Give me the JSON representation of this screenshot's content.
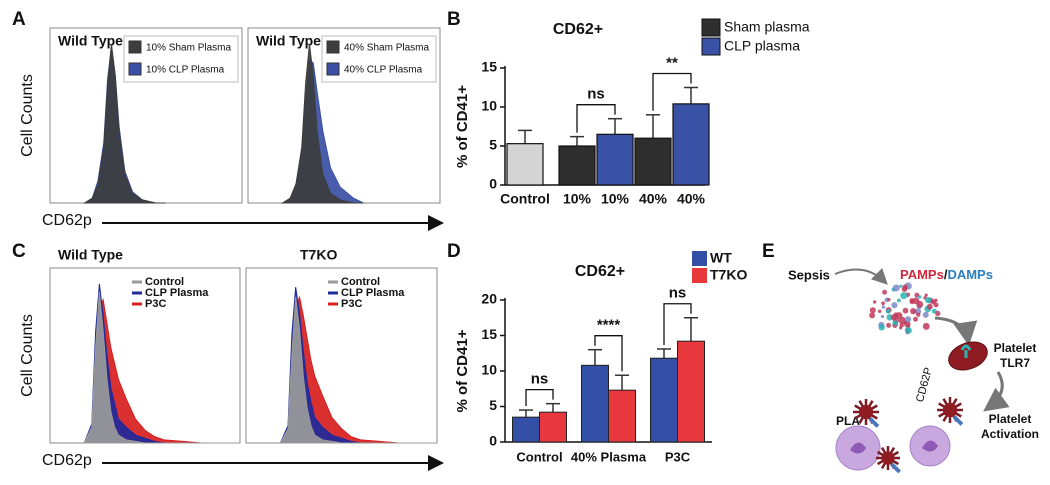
{
  "panel_labels": [
    "A",
    "B",
    "C",
    "D",
    "E"
  ],
  "chart_data": [
    {
      "type": "flow",
      "title": "Wild Type",
      "y_label": "Cell Counts",
      "x_label": "CD62p",
      "legend_marker": "square",
      "xlim": [
        0,
        100
      ],
      "ylim": [
        0,
        110
      ],
      "x": [
        18,
        22,
        25,
        28,
        30,
        32,
        34,
        36,
        39,
        43,
        48,
        55,
        60
      ],
      "series": [
        {
          "name": "10% Sham Plasma",
          "color": "#3d3d3d",
          "values": [
            0,
            3,
            12,
            35,
            75,
            100,
            80,
            45,
            18,
            6,
            2,
            0,
            0
          ]
        },
        {
          "name": "10% CLP Plasma",
          "color": "#3a4fa5",
          "values": [
            0,
            3,
            14,
            38,
            78,
            98,
            80,
            48,
            20,
            7,
            2,
            0,
            0
          ]
        }
      ]
    },
    {
      "type": "flow",
      "title": "Wild Type",
      "legend_marker": "square",
      "xlim": [
        0,
        100
      ],
      "ylim": [
        0,
        110
      ],
      "x": [
        18,
        22,
        25,
        28,
        30,
        32,
        34,
        36,
        39,
        43,
        48,
        55,
        60
      ],
      "series": [
        {
          "name": "40% Sham Plasma",
          "color": "#3d3d3d",
          "values": [
            0,
            3,
            12,
            35,
            75,
            100,
            80,
            45,
            18,
            6,
            2,
            0,
            0
          ]
        },
        {
          "name": "40% CLP Plasma",
          "color": "#3a4fa5",
          "values": [
            0,
            3,
            12,
            32,
            65,
            90,
            88,
            70,
            45,
            22,
            10,
            3,
            0
          ]
        }
      ]
    },
    {
      "type": "bar",
      "title": "CD62+",
      "y_label": "% of CD41+",
      "categories": [
        "Control",
        "10%",
        "10%",
        "40%",
        "40%"
      ],
      "values": [
        5.3,
        5.0,
        6.5,
        6.0,
        10.4
      ],
      "errors": [
        1.7,
        1.2,
        2.0,
        3.0,
        2.1
      ],
      "colors": [
        "#d4d4d4",
        "#2e2e2e",
        "#3a52a5",
        "#2e2e2e",
        "#3a52a5"
      ],
      "legend": [
        {
          "name": "Sham plasma",
          "color": "#2e2e2e"
        },
        {
          "name": "CLP plasma",
          "color": "#3a52a5"
        }
      ],
      "significance": [
        {
          "bars": [
            1,
            2
          ],
          "label": "ns"
        },
        {
          "bars": [
            3,
            4
          ],
          "label": "**"
        }
      ],
      "ylim": [
        0,
        15
      ],
      "yticks": [
        0,
        5,
        10,
        15
      ]
    },
    {
      "type": "flow",
      "title": "Wild Type",
      "y_label": "Cell Counts",
      "x_label": "CD62p",
      "legend_marker": "line",
      "xlim": [
        0,
        100
      ],
      "ylim": [
        0,
        110
      ],
      "x": [
        18,
        22,
        24,
        26,
        28,
        30,
        32,
        34,
        36,
        40,
        45,
        50,
        55,
        60,
        70,
        80,
        90,
        100
      ],
      "series": [
        {
          "name": "Control",
          "color": "#9a9a9a",
          "values": [
            0,
            10,
            60,
            95,
            70,
            40,
            20,
            10,
            5,
            2,
            1,
            0,
            0,
            0,
            0,
            0,
            0,
            0
          ]
        },
        {
          "name": "CLP Plasma",
          "color": "#1f2a9c",
          "values": [
            0,
            12,
            70,
            100,
            80,
            55,
            35,
            25,
            15,
            10,
            5,
            3,
            1,
            0,
            0,
            0,
            0,
            0
          ]
        },
        {
          "name": "P3C",
          "color": "#d81e1e",
          "values": [
            0,
            8,
            50,
            85,
            90,
            75,
            60,
            50,
            40,
            28,
            15,
            8,
            4,
            2,
            1,
            0,
            0,
            0
          ]
        }
      ]
    },
    {
      "type": "flow",
      "title": "T7KO",
      "legend_marker": "line",
      "xlim": [
        0,
        100
      ],
      "ylim": [
        0,
        110
      ],
      "x": [
        18,
        22,
        24,
        26,
        28,
        30,
        32,
        34,
        36,
        40,
        45,
        50,
        55,
        60,
        70,
        80,
        90,
        100
      ],
      "series": [
        {
          "name": "Control",
          "color": "#9a9a9a",
          "values": [
            0,
            9,
            55,
            92,
            72,
            42,
            22,
            11,
            5,
            2,
            1,
            0,
            0,
            0,
            0,
            0,
            0,
            0
          ]
        },
        {
          "name": "CLP Plasma",
          "color": "#1f2a9c",
          "values": [
            0,
            11,
            68,
            98,
            82,
            58,
            38,
            26,
            16,
            10,
            5,
            3,
            1,
            0,
            0,
            0,
            0,
            0
          ]
        },
        {
          "name": "P3C",
          "color": "#d81e1e",
          "values": [
            0,
            8,
            48,
            82,
            92,
            80,
            66,
            52,
            42,
            30,
            16,
            9,
            4,
            2,
            1,
            0,
            0,
            0
          ]
        }
      ]
    },
    {
      "type": "grouped_bar",
      "title": "CD62+",
      "y_label": "% of CD41+",
      "categories": [
        "Control",
        "40% Plasma",
        "P3C"
      ],
      "series": [
        {
          "name": "WT",
          "color": "#3450a6",
          "values": [
            3.5,
            10.8,
            11.8
          ],
          "errors": [
            1.0,
            2.2,
            1.3
          ]
        },
        {
          "name": "T7KO",
          "color": "#e8383d",
          "values": [
            4.2,
            7.3,
            14.2
          ],
          "errors": [
            1.2,
            2.1,
            3.3
          ]
        }
      ],
      "significance": [
        "ns",
        "****",
        "ns"
      ],
      "ylim": [
        0,
        20
      ],
      "yticks": [
        0,
        5,
        10,
        15,
        20
      ]
    }
  ],
  "diagram": {
    "sepsis": "Sepsis",
    "pamps": "PAMPs",
    "separator": "/",
    "damps": "DAMPs",
    "platelet": [
      "Platelet",
      "TLR7"
    ],
    "cd62p": "CD62P",
    "pla": "PLA",
    "activation": [
      "Platelet",
      "Activation"
    ]
  }
}
